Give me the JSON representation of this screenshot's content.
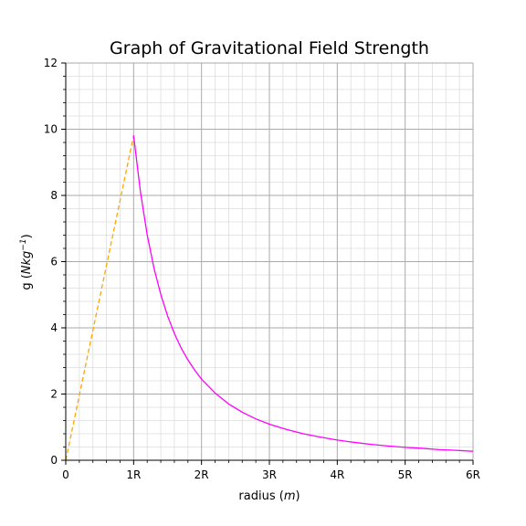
{
  "chart_data": {
    "type": "line",
    "title": "Graph of Gravitational Field Strength",
    "xlabel_prefix": "radius (",
    "xlabel_unit": "m",
    "xlabel_suffix": ")",
    "ylabel_prefix": "g (",
    "ylabel_unit": "Nkg",
    "ylabel_exp": "−1",
    "ylabel_suffix": ")",
    "xlim": [
      0,
      6
    ],
    "ylim": [
      0,
      12
    ],
    "x_ticks": [
      0,
      1,
      2,
      3,
      4,
      5,
      6
    ],
    "x_tick_labels": [
      "0",
      "1R",
      "2R",
      "3R",
      "4R",
      "5R",
      "6R"
    ],
    "y_ticks": [
      0,
      2,
      4,
      6,
      8,
      10,
      12
    ],
    "y_tick_labels": [
      "0",
      "2",
      "4",
      "6",
      "8",
      "10",
      "12"
    ],
    "grid": true,
    "colors": {
      "inside": "#ffa500",
      "outside": "#ff00ff",
      "major_grid": "#aaaaaa",
      "minor_grid": "#dddddd"
    },
    "series": [
      {
        "style": "dashed",
        "color": "#ffa500",
        "x": [
          0,
          1
        ],
        "y": [
          0,
          9.81
        ]
      },
      {
        "style": "solid",
        "color": "#ff00ff",
        "x": [
          1,
          1.1,
          1.2,
          1.3,
          1.4,
          1.5,
          1.6,
          1.7,
          1.8,
          1.9,
          2,
          2.2,
          2.4,
          2.6,
          2.8,
          3,
          3.25,
          3.5,
          3.75,
          4,
          4.25,
          4.5,
          4.75,
          5,
          5.25,
          5.5,
          5.75,
          6
        ],
        "y": [
          9.81,
          8.11,
          6.81,
          5.8,
          5.01,
          4.36,
          3.83,
          3.39,
          3.03,
          2.72,
          2.45,
          2.03,
          1.7,
          1.45,
          1.25,
          1.09,
          0.93,
          0.8,
          0.7,
          0.61,
          0.54,
          0.48,
          0.43,
          0.39,
          0.36,
          0.32,
          0.3,
          0.27
        ]
      }
    ]
  }
}
